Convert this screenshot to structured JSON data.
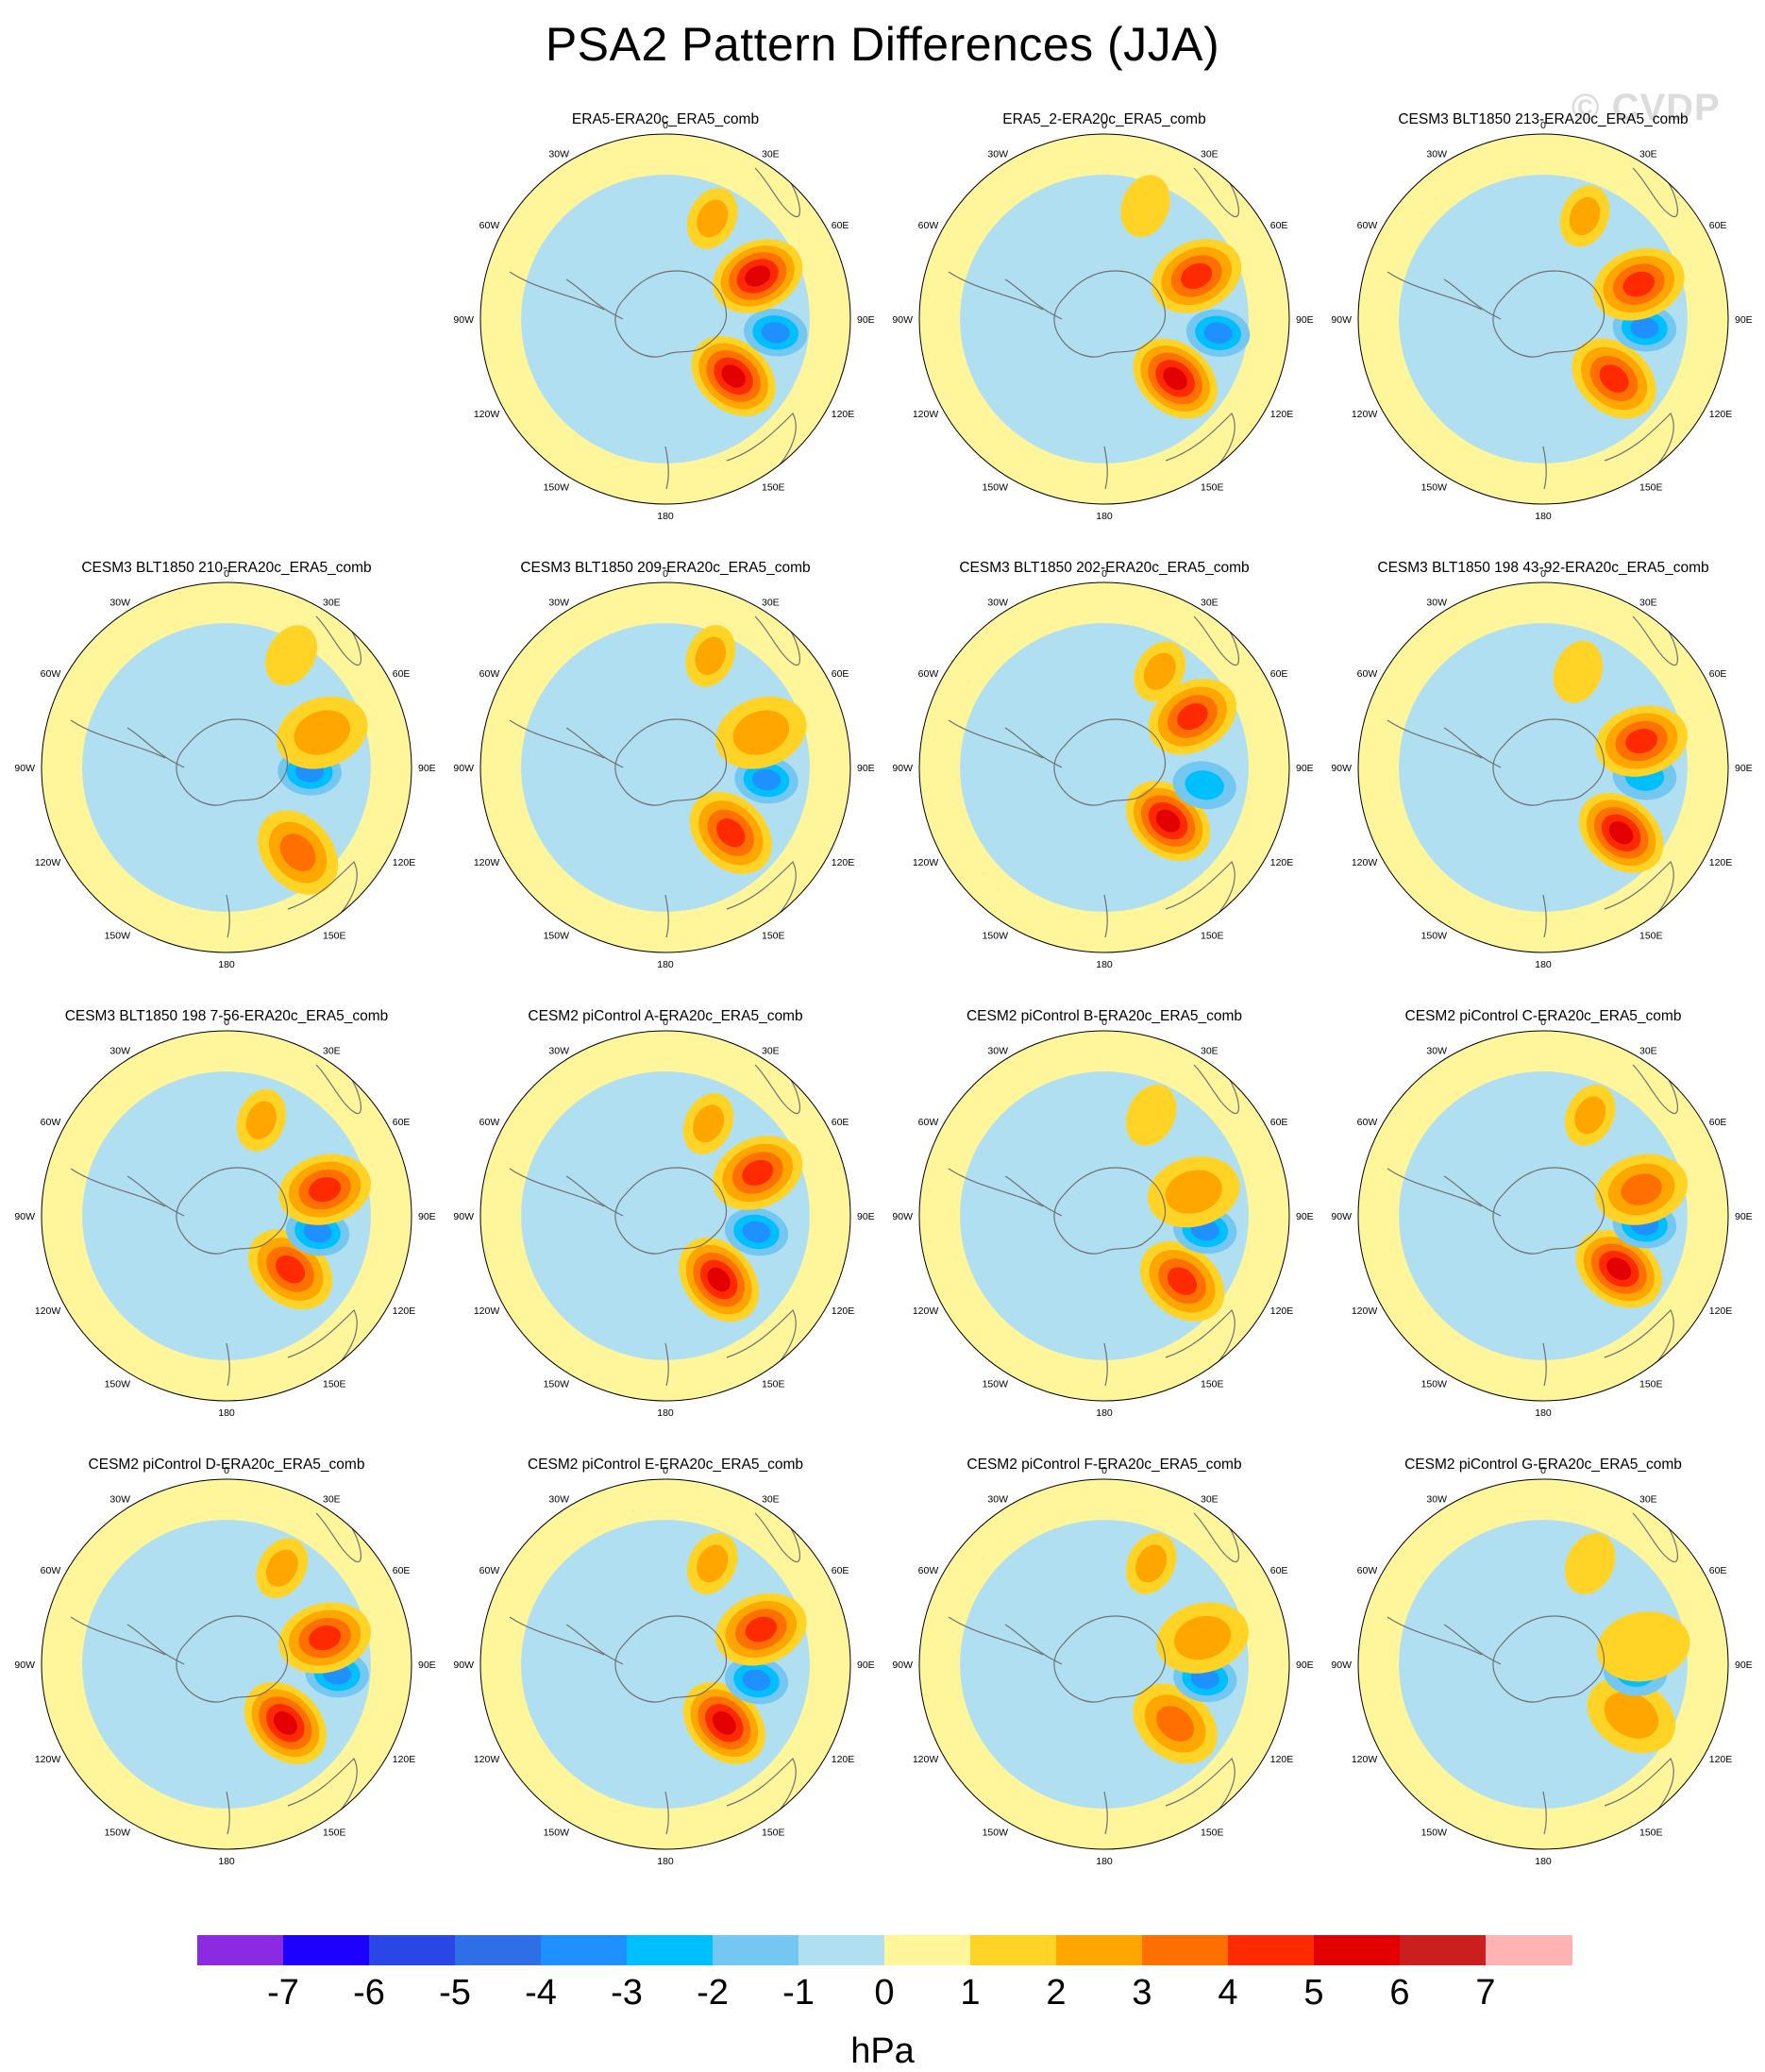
{
  "title": "PSA2 Pattern Differences (JJA)",
  "watermark": "© CVDP",
  "units": "hPa",
  "colorbar": {
    "colors": [
      "#8a2be2",
      "#1e00ff",
      "#2a46e6",
      "#2e6fe8",
      "#1e90ff",
      "#00bfff",
      "#73c7f0",
      "#b0dff2",
      "#fff59a",
      "#ffd427",
      "#ffa600",
      "#ff7000",
      "#ff2a00",
      "#e30000",
      "#cb1f1f",
      "#ffb3b3"
    ],
    "tick_labels": [
      "-7",
      "-6",
      "-5",
      "-4",
      "-3",
      "-2",
      "-1",
      "0",
      "1",
      "2",
      "3",
      "4",
      "5",
      "6",
      "7"
    ]
  },
  "map_labels": {
    "lon_0": "0",
    "lon_30e": "30E",
    "lon_60e": "60E",
    "lon_90e": "90E",
    "lon_120e": "120E",
    "lon_150e": "150E",
    "lon_180": "180",
    "lon_150w": "150W",
    "lon_120w": "120W",
    "lon_90w": "90W",
    "lon_60w": "60W",
    "lon_30w": "30W"
  },
  "panels": [
    {
      "title": "ERA5-ERA20c_ERA5_comb",
      "row": 0,
      "col": 1,
      "features": [
        {
          "kind": "high",
          "lon": 130,
          "r": 0.48,
          "amp": 5.5,
          "w": 0.22
        },
        {
          "kind": "low",
          "lon": 97,
          "r": 0.6,
          "amp": -3.5,
          "w": 0.15
        },
        {
          "kind": "high",
          "lon": 65,
          "r": 0.55,
          "amp": 5.5,
          "w": 0.22
        },
        {
          "kind": "high",
          "lon": 25,
          "r": 0.6,
          "amp": 2.5,
          "w": 0.15
        }
      ]
    },
    {
      "title": "ERA5_2-ERA20c_ERA5_comb",
      "row": 0,
      "col": 2,
      "features": [
        {
          "kind": "high",
          "lon": 130,
          "r": 0.5,
          "amp": 5,
          "w": 0.22
        },
        {
          "kind": "low",
          "lon": 97,
          "r": 0.62,
          "amp": -3.5,
          "w": 0.15
        },
        {
          "kind": "high",
          "lon": 65,
          "r": 0.55,
          "amp": 4,
          "w": 0.22
        },
        {
          "kind": "high",
          "lon": 20,
          "r": 0.65,
          "amp": 1.5,
          "w": 0.15
        }
      ]
    },
    {
      "title": "CESM3 BLT1850 213-ERA20c_ERA5_comb",
      "row": 0,
      "col": 3,
      "features": [
        {
          "kind": "high",
          "lon": 130,
          "r": 0.5,
          "amp": 4.5,
          "w": 0.22
        },
        {
          "kind": "low",
          "lon": 95,
          "r": 0.55,
          "amp": -3.5,
          "w": 0.15
        },
        {
          "kind": "high",
          "lon": 70,
          "r": 0.55,
          "amp": 4.5,
          "w": 0.22
        },
        {
          "kind": "high",
          "lon": 22,
          "r": 0.6,
          "amp": 2.5,
          "w": 0.15
        }
      ]
    },
    {
      "title": "CESM3 BLT1850 210-ERA20c_ERA5_comb",
      "row": 1,
      "col": 0,
      "features": [
        {
          "kind": "high",
          "lon": 140,
          "r": 0.6,
          "amp": 3.5,
          "w": 0.22
        },
        {
          "kind": "low",
          "lon": 93,
          "r": 0.45,
          "amp": -3,
          "w": 0.15
        },
        {
          "kind": "high",
          "lon": 70,
          "r": 0.55,
          "amp": 2,
          "w": 0.22
        },
        {
          "kind": "high",
          "lon": 30,
          "r": 0.7,
          "amp": 1.5,
          "w": 0.15
        }
      ]
    },
    {
      "title": "CESM3 BLT1850 209-ERA20c_ERA5_comb",
      "row": 1,
      "col": 1,
      "features": [
        {
          "kind": "high",
          "lon": 135,
          "r": 0.5,
          "amp": 4.5,
          "w": 0.22
        },
        {
          "kind": "low",
          "lon": 97,
          "r": 0.55,
          "amp": -3,
          "w": 0.15
        },
        {
          "kind": "high",
          "lon": 70,
          "r": 0.55,
          "amp": 2.5,
          "w": 0.22
        },
        {
          "kind": "high",
          "lon": 22,
          "r": 0.65,
          "amp": 2,
          "w": 0.15
        }
      ]
    },
    {
      "title": "CESM3 BLT1850 202-ERA20c_ERA5_comb",
      "row": 1,
      "col": 2,
      "features": [
        {
          "kind": "high",
          "lon": 130,
          "r": 0.45,
          "amp": 5.5,
          "w": 0.22
        },
        {
          "kind": "low",
          "lon": 100,
          "r": 0.55,
          "amp": -2.5,
          "w": 0.15
        },
        {
          "kind": "high",
          "lon": 60,
          "r": 0.55,
          "amp": 4,
          "w": 0.22
        },
        {
          "kind": "high",
          "lon": 30,
          "r": 0.6,
          "amp": 2,
          "w": 0.15
        }
      ]
    },
    {
      "title": "CESM3 BLT1850 198 43-92-ERA20c_ERA5_comb",
      "row": 1,
      "col": 3,
      "features": [
        {
          "kind": "high",
          "lon": 130,
          "r": 0.55,
          "amp": 5,
          "w": 0.22
        },
        {
          "kind": "low",
          "lon": 95,
          "r": 0.55,
          "amp": -2,
          "w": 0.15
        },
        {
          "kind": "high",
          "lon": 75,
          "r": 0.55,
          "amp": 4.5,
          "w": 0.22
        },
        {
          "kind": "high",
          "lon": 20,
          "r": 0.55,
          "amp": 1.5,
          "w": 0.15
        }
      ]
    },
    {
      "title": "CESM3 BLT1850 198 7-56-ERA20c_ERA5_comb",
      "row": 2,
      "col": 0,
      "features": [
        {
          "kind": "high",
          "lon": 130,
          "r": 0.45,
          "amp": 4.5,
          "w": 0.22
        },
        {
          "kind": "low",
          "lon": 100,
          "r": 0.5,
          "amp": -3.5,
          "w": 0.15
        },
        {
          "kind": "high",
          "lon": 75,
          "r": 0.55,
          "amp": 4.5,
          "w": 0.22
        },
        {
          "kind": "high",
          "lon": 20,
          "r": 0.55,
          "amp": 2,
          "w": 0.15
        }
      ]
    },
    {
      "title": "CESM2 piControl A-ERA20c_ERA5_comb",
      "row": 2,
      "col": 1,
      "features": [
        {
          "kind": "high",
          "lon": 140,
          "r": 0.45,
          "amp": 5,
          "w": 0.22
        },
        {
          "kind": "low",
          "lon": 100,
          "r": 0.5,
          "amp": -3.5,
          "w": 0.15
        },
        {
          "kind": "high",
          "lon": 65,
          "r": 0.55,
          "amp": 4.5,
          "w": 0.22
        },
        {
          "kind": "high",
          "lon": 25,
          "r": 0.55,
          "amp": 2,
          "w": 0.15
        }
      ]
    },
    {
      "title": "CESM2 piControl B-ERA20c_ERA5_comb",
      "row": 2,
      "col": 2,
      "features": [
        {
          "kind": "high",
          "lon": 130,
          "r": 0.55,
          "amp": 4,
          "w": 0.22
        },
        {
          "kind": "low",
          "lon": 98,
          "r": 0.55,
          "amp": -3.5,
          "w": 0.15
        },
        {
          "kind": "high",
          "lon": 75,
          "r": 0.5,
          "amp": 2.5,
          "w": 0.22
        },
        {
          "kind": "high",
          "lon": 25,
          "r": 0.6,
          "amp": 1.5,
          "w": 0.15
        }
      ]
    },
    {
      "title": "CESM2 piControl C-ERA20c_ERA5_comb",
      "row": 2,
      "col": 3,
      "features": [
        {
          "kind": "high",
          "lon": 125,
          "r": 0.5,
          "amp": 5,
          "w": 0.22
        },
        {
          "kind": "low",
          "lon": 95,
          "r": 0.55,
          "amp": -3.5,
          "w": 0.15
        },
        {
          "kind": "high",
          "lon": 75,
          "r": 0.55,
          "amp": 3.5,
          "w": 0.22
        },
        {
          "kind": "high",
          "lon": 25,
          "r": 0.6,
          "amp": 2,
          "w": 0.15
        }
      ]
    },
    {
      "title": "CESM2 piControl D-ERA20c_ERA5_comb",
      "row": 3,
      "col": 0,
      "features": [
        {
          "kind": "high",
          "lon": 135,
          "r": 0.45,
          "amp": 5,
          "w": 0.22
        },
        {
          "kind": "low",
          "lon": 95,
          "r": 0.6,
          "amp": -3.5,
          "w": 0.15
        },
        {
          "kind": "high",
          "lon": 75,
          "r": 0.55,
          "amp": 4.5,
          "w": 0.22
        },
        {
          "kind": "high",
          "lon": 30,
          "r": 0.6,
          "amp": 2.5,
          "w": 0.15
        }
      ]
    },
    {
      "title": "CESM2 piControl E-ERA20c_ERA5_comb",
      "row": 3,
      "col": 1,
      "features": [
        {
          "kind": "high",
          "lon": 135,
          "r": 0.45,
          "amp": 5,
          "w": 0.22
        },
        {
          "kind": "low",
          "lon": 100,
          "r": 0.5,
          "amp": -3,
          "w": 0.15
        },
        {
          "kind": "high",
          "lon": 70,
          "r": 0.55,
          "amp": 4.5,
          "w": 0.22
        },
        {
          "kind": "high",
          "lon": 25,
          "r": 0.6,
          "amp": 2.5,
          "w": 0.15
        }
      ]
    },
    {
      "title": "CESM2 piControl F-ERA20c_ERA5_comb",
      "row": 3,
      "col": 2,
      "features": [
        {
          "kind": "high",
          "lon": 130,
          "r": 0.5,
          "amp": 3.5,
          "w": 0.22
        },
        {
          "kind": "low",
          "lon": 98,
          "r": 0.55,
          "amp": -3.5,
          "w": 0.15
        },
        {
          "kind": "high",
          "lon": 75,
          "r": 0.55,
          "amp": 2.5,
          "w": 0.22
        },
        {
          "kind": "high",
          "lon": 25,
          "r": 0.6,
          "amp": 2.5,
          "w": 0.15
        }
      ]
    },
    {
      "title": "CESM2 piControl G-ERA20c_ERA5_comb",
      "row": 3,
      "col": 3,
      "features": [
        {
          "kind": "high",
          "lon": 120,
          "r": 0.55,
          "amp": 2,
          "w": 0.22
        },
        {
          "kind": "low",
          "lon": 95,
          "r": 0.5,
          "amp": -2,
          "w": 0.15
        },
        {
          "kind": "high",
          "lon": 80,
          "r": 0.55,
          "amp": 1.5,
          "w": 0.22
        },
        {
          "kind": "high",
          "lon": 25,
          "r": 0.6,
          "amp": 1.5,
          "w": 0.15
        }
      ]
    }
  ]
}
